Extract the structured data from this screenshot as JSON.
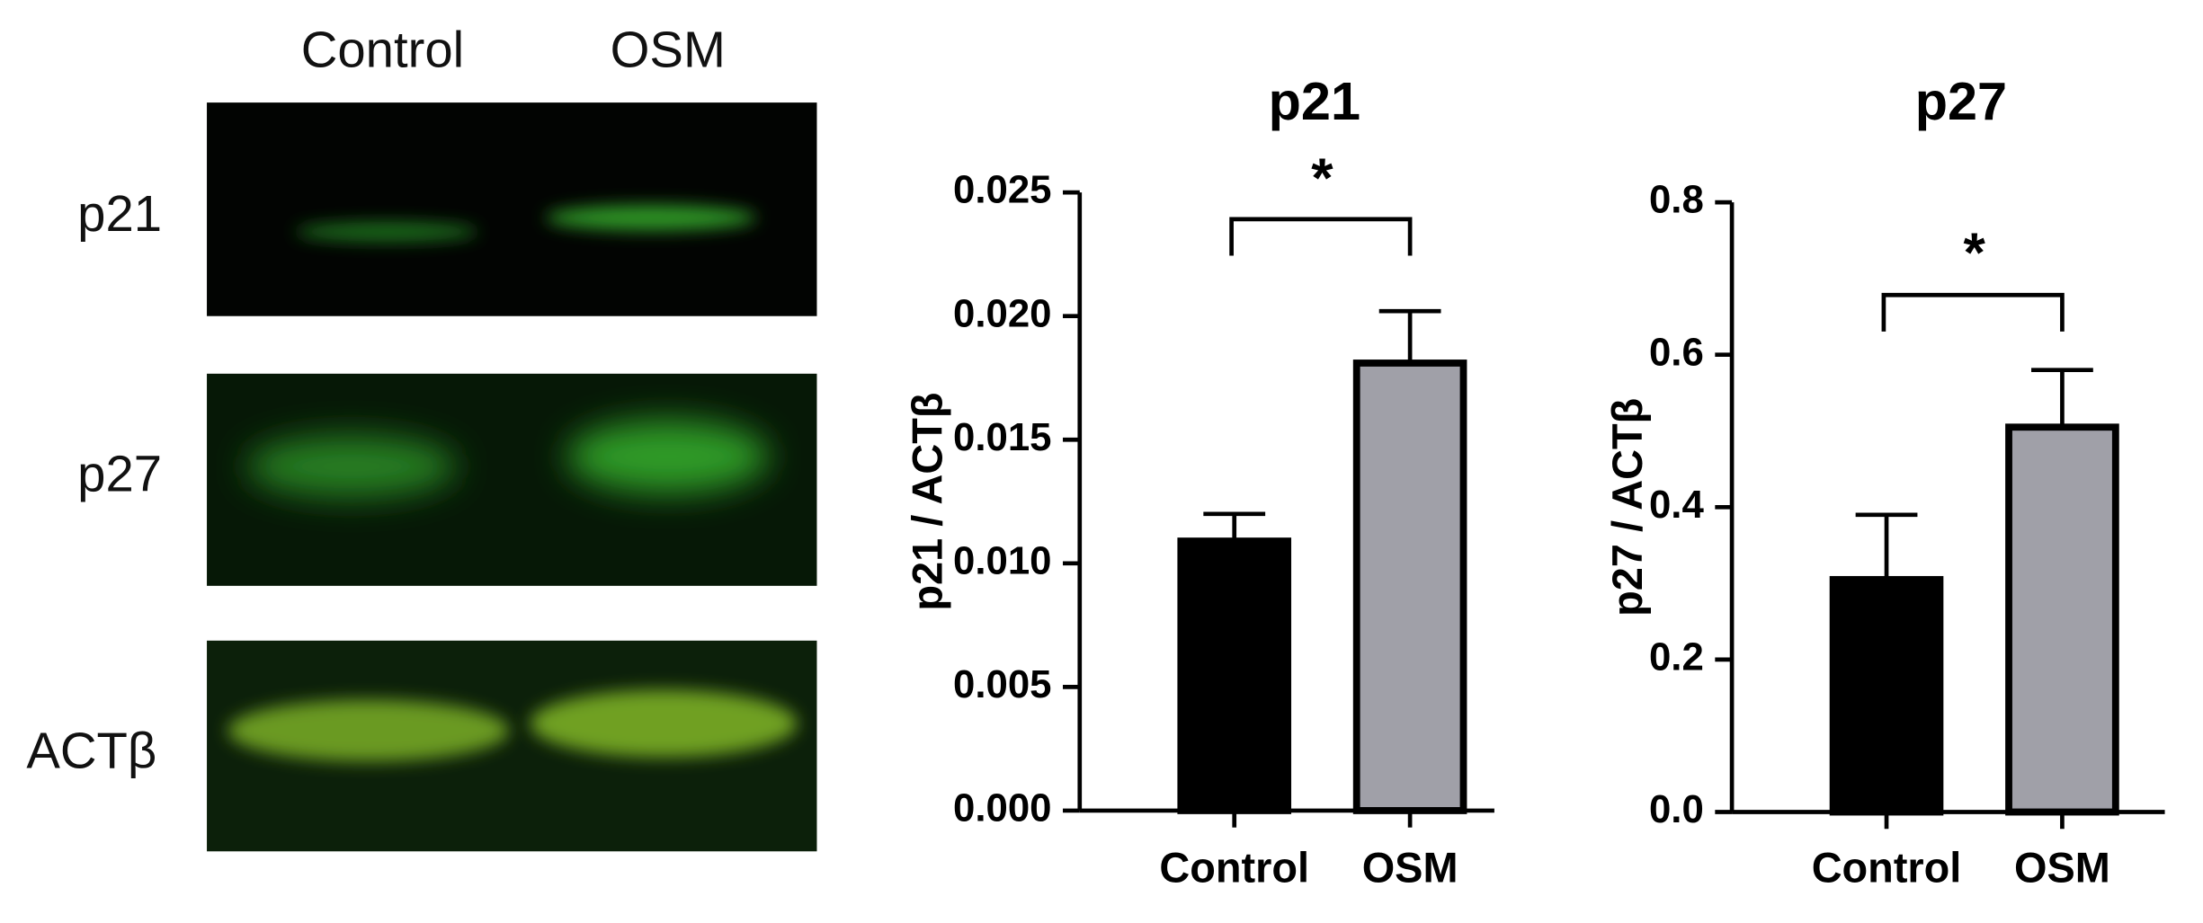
{
  "blot": {
    "columns": [
      "Control",
      "OSM"
    ],
    "rows": [
      "p21",
      "p27",
      "ACTβ"
    ]
  },
  "chart_data": [
    {
      "type": "bar",
      "title": "p21",
      "y_label": "p21 / ACTβ",
      "categories": [
        "Control",
        "OSM"
      ],
      "values": [
        0.0109,
        0.0181
      ],
      "errors": [
        0.0011,
        0.0021
      ],
      "colors": [
        "#000000",
        "#a0a0a8"
      ],
      "ylim": [
        0,
        0.025
      ],
      "yticks": [
        {
          "value": 0,
          "label": "0.000"
        },
        0.005,
        {
          "value": 0.01,
          "label": "0.010"
        },
        0.015,
        {
          "value": 0.02,
          "label": "0.020"
        },
        0.025
      ],
      "annotation": "*"
    },
    {
      "type": "bar",
      "title": "p27",
      "y_label": "p27 / ACTβ",
      "categories": [
        "Control",
        "OSM"
      ],
      "values": [
        0.305,
        0.505
      ],
      "errors": [
        0.085,
        0.075
      ],
      "colors": [
        "#000000",
        "#a0a0a8"
      ],
      "ylim": [
        0,
        0.8
      ],
      "yticks": [
        {
          "value": 0,
          "label": "0.0"
        },
        0.2,
        0.4,
        0.6,
        0.8
      ],
      "annotation": "*"
    }
  ]
}
